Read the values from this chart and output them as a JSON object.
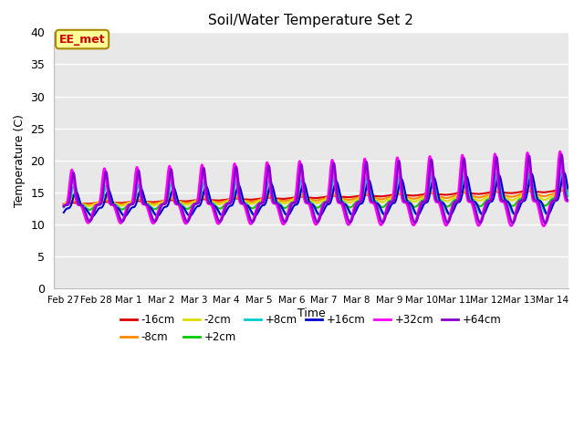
{
  "title": "Soil/Water Temperature Set 2",
  "xlabel": "Time",
  "ylabel": "Temperature (C)",
  "ylim": [
    0,
    40
  ],
  "annotation_text": "EE_met",
  "annotation_color": "#cc0000",
  "annotation_bg": "#ffff99",
  "annotation_border": "#aa8800",
  "bg_color": "#e8e8e8",
  "grid_color": "white",
  "series": [
    {
      "label": "-16cm",
      "color": "#dd0000",
      "lw": 1.5,
      "base": 13.2,
      "slope": 0.13,
      "amp0": 0.15,
      "amp_g": 0.005,
      "phase": 0.0,
      "sharp": 1,
      "lag": 0.0
    },
    {
      "label": "-8cm",
      "color": "#ff8800",
      "lw": 1.5,
      "base": 13.2,
      "slope": 0.1,
      "amp0": 0.4,
      "amp_g": 0.01,
      "phase": 0.05,
      "sharp": 1,
      "lag": 0.02
    },
    {
      "label": "-2cm",
      "color": "#dddd00",
      "lw": 1.5,
      "base": 13.2,
      "slope": 0.08,
      "amp0": 0.8,
      "amp_g": 0.02,
      "phase": 0.08,
      "sharp": 1,
      "lag": 0.04
    },
    {
      "label": "+2cm",
      "color": "#00cc00",
      "lw": 1.5,
      "base": 13.0,
      "slope": 0.07,
      "amp0": 1.5,
      "amp_g": 0.05,
      "phase": 0.1,
      "sharp": 2,
      "lag": 0.06
    },
    {
      "label": "+8cm",
      "color": "#00cccc",
      "lw": 1.5,
      "base": 13.0,
      "slope": 0.06,
      "amp0": 3.0,
      "amp_g": 0.1,
      "phase": 0.12,
      "sharp": 3,
      "lag": 0.1
    },
    {
      "label": "+16cm",
      "color": "#0000cc",
      "lw": 1.5,
      "base": 12.5,
      "slope": 0.08,
      "amp0": 2.5,
      "amp_g": 0.12,
      "phase": 0.15,
      "sharp": 3,
      "lag": 0.15
    },
    {
      "label": "+32cm",
      "color": "#ff00ff",
      "lw": 1.8,
      "base": 13.0,
      "slope": 0.04,
      "amp0": 5.5,
      "amp_g": 0.15,
      "phase": 0.0,
      "sharp": 5,
      "lag": 0.0
    },
    {
      "label": "+64cm",
      "color": "#8800cc",
      "lw": 1.8,
      "base": 13.0,
      "slope": 0.05,
      "amp0": 5.0,
      "amp_g": 0.14,
      "phase": 0.02,
      "sharp": 6,
      "lag": 0.05
    }
  ],
  "xtick_labels": [
    "Feb 27",
    "Feb 28",
    "Mar 1",
    "Mar 2",
    "Mar 3",
    "Mar 4",
    "Mar 5",
    "Mar 6",
    "Mar 7",
    "Mar 8",
    "Mar 9",
    "Mar 10",
    "Mar 11",
    "Mar 12",
    "Mar 13",
    "Mar 14"
  ],
  "xtick_positions": [
    0,
    1,
    2,
    3,
    4,
    5,
    6,
    7,
    8,
    9,
    10,
    11,
    12,
    13,
    14,
    15
  ]
}
